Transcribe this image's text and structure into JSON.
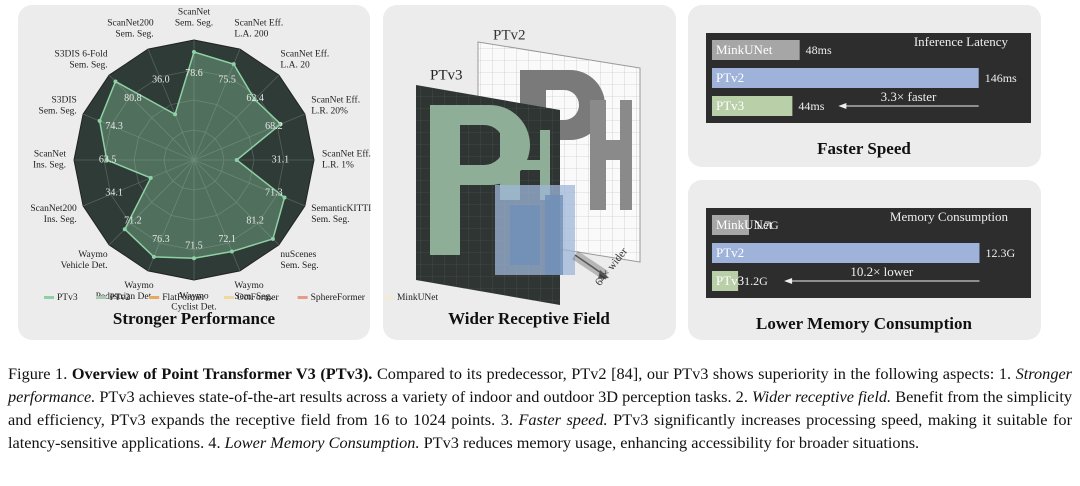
{
  "chart_data": [
    {
      "type": "radar",
      "title": "Stronger Performance",
      "categories": [
        [
          "ScanNet",
          "Sem. Seg."
        ],
        [
          "ScanNet Eff.",
          "L.A. 200"
        ],
        [
          "ScanNet Eff.",
          "L.A. 20"
        ],
        [
          "ScanNet Eff.",
          "L.R. 20%"
        ],
        [
          "ScanNet Eff.",
          "L.R. 1%"
        ],
        [
          "SemanticKITTI",
          "Sem. Seg."
        ],
        [
          "nuScenes",
          "Sem. Seg."
        ],
        [
          "Waymo",
          "Sem. Seg."
        ],
        [
          "Waymo",
          "Cyclist Det."
        ],
        [
          "Waymo",
          "Pedestrian Det."
        ],
        [
          "Waymo",
          "Vehicle Det."
        ],
        [
          "ScanNet200",
          "Ins. Seg."
        ],
        [
          "ScanNet",
          "Ins. Seg."
        ],
        [
          "S3DIS",
          "Sem. Seg."
        ],
        [
          "S3DIS 6-Fold",
          "Sem. Seg."
        ],
        [
          "ScanNet200",
          "Sem. Seg."
        ]
      ],
      "series": [
        {
          "name": "PTv3",
          "color": "#8fd1a6",
          "values": [
            78.6,
            75.5,
            62.4,
            68.2,
            31.1,
            71.3,
            81.2,
            72.1,
            71.5,
            76.3,
            71.2,
            34.1,
            63.5,
            74.3,
            80.8,
            36.0
          ],
          "value_labels": [
            "78.6",
            "75.5",
            "62.4",
            "68.2",
            "31.1",
            "71.3",
            "81.2",
            "72.1",
            "71.5",
            "76.3",
            "71.2",
            "34.1",
            "63.5",
            "74.3",
            "80.8",
            "36.0"
          ]
        }
      ],
      "other_methods": [
        {
          "name": "PTv2",
          "color": "#a8c8b0"
        },
        {
          "name": "FlatFormer",
          "color": "#e8a860"
        },
        {
          "name": "OctFormer",
          "color": "#f0d8a0"
        },
        {
          "name": "SphereFormer",
          "color": "#e89a8a"
        },
        {
          "name": "MinkUNet",
          "color": "#f5ecd0"
        }
      ]
    },
    {
      "type": "hbar",
      "title": "Faster Speed",
      "subtitle": "Inference Latency",
      "categories": [
        "MinkUNet",
        "PTv2",
        "PTv3"
      ],
      "values": [
        48,
        146,
        44
      ],
      "value_labels": [
        "48ms",
        "146ms",
        "44ms"
      ],
      "colors": [
        "#a6a6a6",
        "#9fb3da",
        "#b9cfa8"
      ],
      "xlim": [
        0,
        150
      ],
      "annotation": "3.3× faster"
    },
    {
      "type": "hbar",
      "title": "Lower Memory Consumption",
      "subtitle": "Memory Consumption",
      "categories": [
        "MinkUNet",
        "PTv2",
        "PTv3"
      ],
      "values": [
        1.7,
        12.3,
        1.2
      ],
      "value_labels": [
        "1.7G",
        "12.3G",
        "1.2G"
      ],
      "colors": [
        "#a6a6a6",
        "#9fb3da",
        "#b9cfa8"
      ],
      "xlim": [
        0,
        12.6
      ],
      "annotation": "10.2× lower"
    }
  ],
  "illustration": {
    "title": "Wider Receptive Field",
    "back_label": "PTv2",
    "front_label": "PTv3",
    "arrow_label": "64× wider"
  },
  "caption": {
    "label": "Figure 1.",
    "title": "Overview of Point Transformer V3 (PTv3).",
    "intro": "Compared to its predecessor, PTv2 [84], our PTv3 shows superiority in the following aspects:",
    "points": [
      {
        "number": "1.",
        "heading": "Stronger performance.",
        "text": "PTv3 achieves state-of-the-art results across a variety of indoor and outdoor 3D perception tasks."
      },
      {
        "number": "2.",
        "heading": "Wider receptive field.",
        "text": "Benefit from the simplicity and efficiency, PTv3 expands the receptive field from 16 to 1024 points."
      },
      {
        "number": "3.",
        "heading": "Faster speed.",
        "text": "PTv3 significantly increases processing speed, making it suitable for latency-sensitive applications."
      },
      {
        "number": "4.",
        "heading": "Lower Memory Consumption.",
        "text": "PTv3 reduces memory usage, enhancing accessibility for broader situations."
      }
    ]
  }
}
